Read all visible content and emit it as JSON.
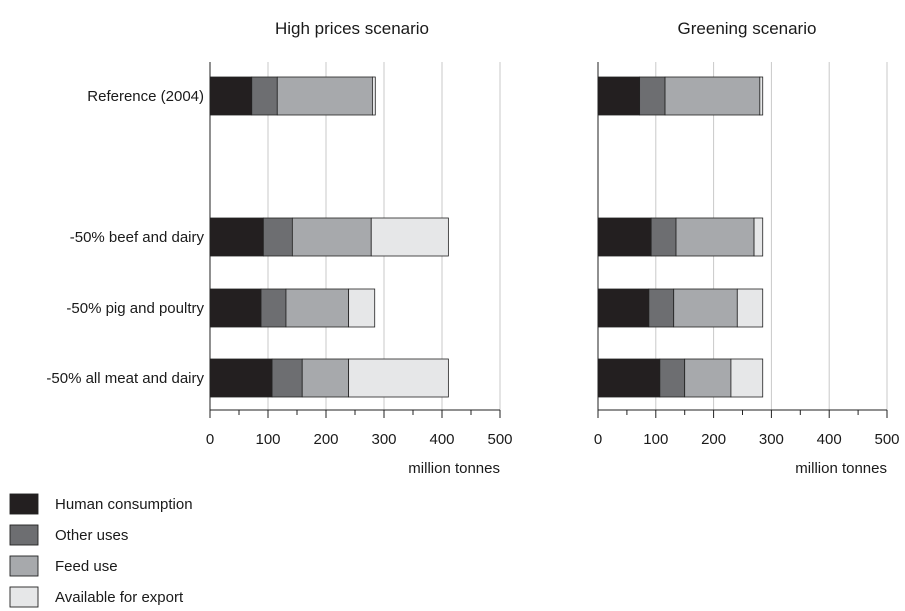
{
  "chart_data": [
    {
      "type": "bar",
      "orientation": "horizontal",
      "stacked": true,
      "title": "High prices scenario",
      "xlabel": "million tonnes",
      "xlim": [
        0,
        500
      ],
      "xticks": [
        "0",
        "100",
        "200",
        "300",
        "400",
        "500"
      ],
      "grid": true,
      "categories": [
        "Reference (2004)",
        "-50% beef and dairy",
        "-50% pig and poultry",
        "-50% all meat and dairy"
      ],
      "series": [
        {
          "name": "Human consumption",
          "values": [
            72,
            92,
            88,
            107
          ]
        },
        {
          "name": "Other uses",
          "values": [
            44,
            50,
            43,
            52
          ]
        },
        {
          "name": "Feed use",
          "values": [
            164,
            136,
            108,
            80
          ]
        },
        {
          "name": "Available for export",
          "values": [
            5,
            133,
            45,
            172
          ]
        }
      ]
    },
    {
      "type": "bar",
      "orientation": "horizontal",
      "stacked": true,
      "title": "Greening scenario",
      "xlabel": "million tonnes",
      "xlim": [
        0,
        500
      ],
      "xticks": [
        "0",
        "100",
        "200",
        "300",
        "400",
        "500"
      ],
      "grid": true,
      "categories": [
        "Reference (2004)",
        "-50% beef and dairy",
        "-50% pig and poultry",
        "-50% all meat and dairy"
      ],
      "series": [
        {
          "name": "Human consumption",
          "values": [
            72,
            92,
            88,
            107
          ]
        },
        {
          "name": "Other uses",
          "values": [
            44,
            43,
            43,
            43
          ]
        },
        {
          "name": "Feed use",
          "values": [
            164,
            135,
            110,
            80
          ]
        },
        {
          "name": "Available for export",
          "values": [
            5,
            15,
            44,
            55
          ]
        }
      ]
    }
  ],
  "legend": {
    "placement": "bottom-left",
    "items": [
      {
        "label": "Human consumption",
        "color": "#231f20"
      },
      {
        "label": "Other uses",
        "color": "#6d6e71"
      },
      {
        "label": "Feed use",
        "color": "#a7a9ac"
      },
      {
        "label": "Available for export",
        "color": "#e6e7e8"
      }
    ]
  }
}
